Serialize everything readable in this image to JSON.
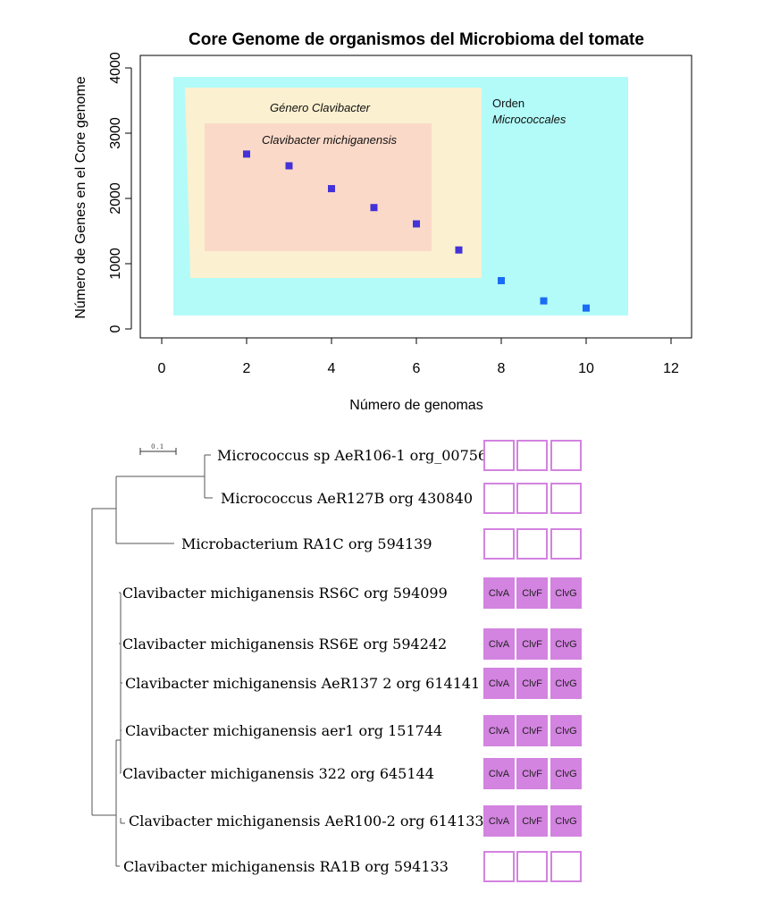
{
  "chart_data": {
    "type": "scatter",
    "title": "Core Genome de organismos del Microbioma del tomate",
    "xlabel": "Número de genomas",
    "ylabel": "Número de Genes en el Core genome",
    "xlim": [
      0,
      12
    ],
    "ylim": [
      0,
      4000
    ],
    "x_ticks": [
      "0",
      "2",
      "4",
      "6",
      "8",
      "10",
      "12"
    ],
    "y_ticks": [
      "0",
      "1000",
      "2000",
      "3000",
      "4000"
    ],
    "grid": false,
    "points": [
      {
        "x": 2,
        "y": 2680
      },
      {
        "x": 3,
        "y": 2500
      },
      {
        "x": 4,
        "y": 2150
      },
      {
        "x": 5,
        "y": 1860
      },
      {
        "x": 6,
        "y": 1610
      },
      {
        "x": 7,
        "y": 1210
      },
      {
        "x": 8,
        "y": 740
      },
      {
        "x": 9,
        "y": 430
      },
      {
        "x": 10,
        "y": 320
      }
    ],
    "regions": [
      {
        "label_line1": "Orden",
        "label_line2": "Micrococcales",
        "color": "#b2fbf8"
      },
      {
        "label_line1": "Género Clavibacter",
        "label_line2": "",
        "color": "#fbf0d0"
      },
      {
        "label_line1": "Clavibacter michiganensis",
        "label_line2": "",
        "color": "#fbd9c8"
      }
    ],
    "point_color_dark": "#4332d8",
    "point_color_light": "#1b6cf4"
  },
  "tree": {
    "scale_label": "0.1",
    "leaves": [
      {
        "name": "Micrococcus sp AeR106-1 org_00756",
        "cells": [
          "",
          "",
          ""
        ]
      },
      {
        "name": "Micrococcus AeR127B org 430840",
        "cells": [
          "",
          "",
          ""
        ]
      },
      {
        "name": "Microbacterium RA1C org 594139",
        "cells": [
          "",
          "",
          ""
        ]
      },
      {
        "name": "Clavibacter michiganensis RS6C org 594099",
        "cells": [
          "ClvA",
          "ClvF",
          "ClvG"
        ]
      },
      {
        "name": "Clavibacter michiganensis RS6E org 594242",
        "cells": [
          "ClvA",
          "ClvF",
          "ClvG"
        ]
      },
      {
        "name": "Clavibacter michiganensis AeR137 2 org 614141",
        "cells": [
          "ClvA",
          "ClvF",
          "ClvG"
        ]
      },
      {
        "name": "Clavibacter michiganensis aer1 org 151744",
        "cells": [
          "ClvA",
          "ClvF",
          "ClvG"
        ]
      },
      {
        "name": "Clavibacter michiganensis 322 org 645144",
        "cells": [
          "ClvA",
          "ClvF",
          "ClvG"
        ]
      },
      {
        "name": "Clavibacter michiganensis AeR100-2 org 614133",
        "cells": [
          "ClvA",
          "ClvF",
          "ClvG"
        ]
      },
      {
        "name": "Clavibacter michiganensis RA1B org 594133",
        "cells": [
          "",
          "",
          ""
        ]
      }
    ],
    "cell_fill_color": "#d383e0",
    "cell_border_color": "#d383e0"
  }
}
